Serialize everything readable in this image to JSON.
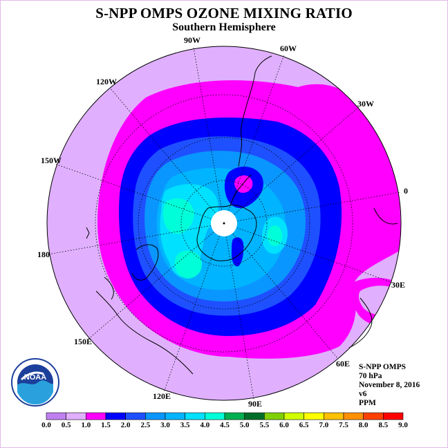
{
  "title": "S-NPP OMPS OZONE MIXING RATIO",
  "subtitle": "Southern Hemisphere",
  "longitude_labels": [
    "90W",
    "60W",
    "30W",
    "0",
    "30E",
    "60E",
    "90E",
    "120E",
    "150E",
    "180",
    "150W",
    "120W"
  ],
  "info": {
    "instrument": "S-NPP OMPS",
    "pressure": "70 hPa",
    "date": "November 8, 2016",
    "version": "v6",
    "units": "PPM"
  },
  "logo_text": "NOAA",
  "colorbar": {
    "ticks": [
      "0.0",
      "0.5",
      "1.0",
      "1.5",
      "2.0",
      "2.5",
      "3.0",
      "3.5",
      "4.0",
      "4.5",
      "5.0",
      "5.5",
      "6.0",
      "6.5",
      "7.0",
      "7.5",
      "8.0",
      "8.5",
      "9.0"
    ],
    "colors": [
      "#c080f0",
      "#e0b0ff",
      "#ff00ff",
      "#0000ff",
      "#1e50ff",
      "#0a96ff",
      "#00b4ff",
      "#00e0ff",
      "#00ffd8",
      "#00b050",
      "#006e28",
      "#80d000",
      "#d0ff00",
      "#ffff00",
      "#ffc000",
      "#ff9000",
      "#ff4000",
      "#ff0000",
      "#8b5a3c"
    ]
  }
}
